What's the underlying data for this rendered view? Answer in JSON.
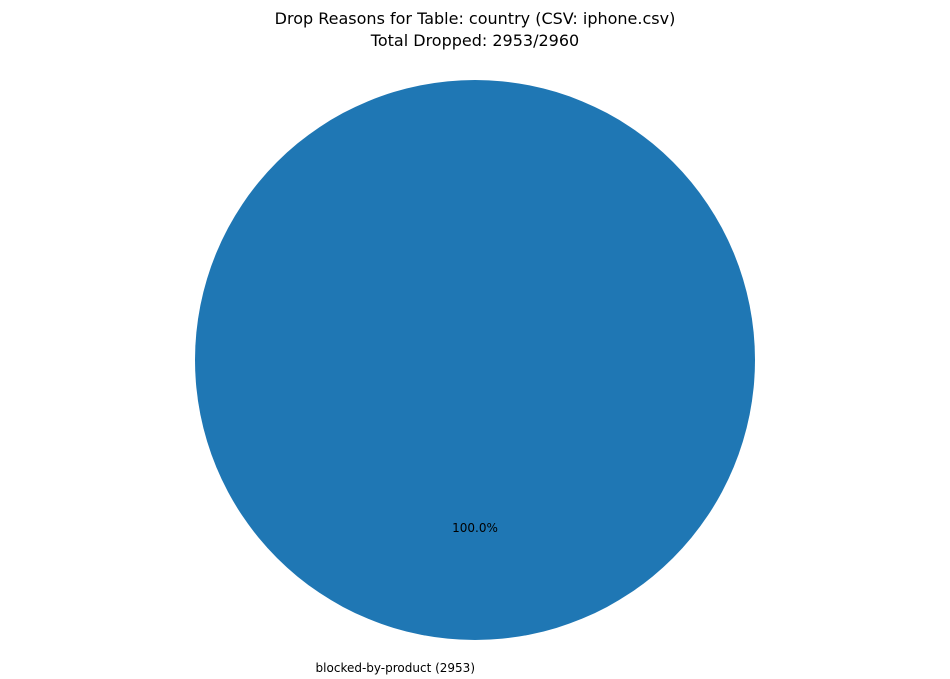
{
  "chart_data": {
    "type": "pie",
    "title": "Drop Reasons for Table: country (CSV: iphone.csv)",
    "subtitle": "Total Dropped: 2953/2960",
    "slices": [
      {
        "label": "blocked-by-product (2953)",
        "value": 2953,
        "percent_label": "100.0%",
        "color": "#1f77b4"
      }
    ],
    "legend": "none",
    "start_angle": 90
  }
}
